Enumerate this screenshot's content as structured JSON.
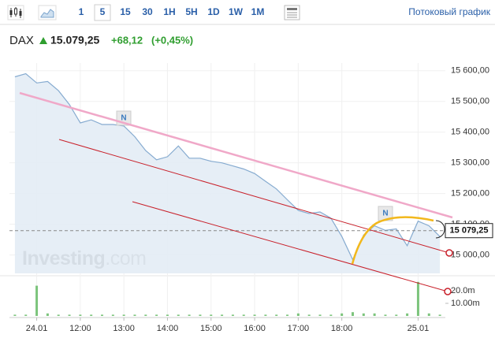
{
  "toolbar": {
    "intervals": [
      "1",
      "5",
      "15",
      "30",
      "1H",
      "5H",
      "1D",
      "1W",
      "1M"
    ],
    "streaming": "Потоковый график"
  },
  "quote": {
    "symbol": "DAX",
    "price": "15.079,25",
    "change": "+68,12",
    "change_pct": "(+0,45%)"
  },
  "chart_data": {
    "type": "area",
    "categories": [
      null,
      null,
      "24.01",
      null,
      null,
      null,
      "12:00",
      null,
      null,
      null,
      "13:00",
      null,
      null,
      null,
      "14:00",
      null,
      null,
      null,
      "15:00",
      null,
      null,
      null,
      "16:00",
      null,
      null,
      null,
      "17:00",
      null,
      null,
      null,
      "18:00",
      null,
      null,
      null,
      null,
      null,
      null,
      "25.01",
      null,
      null
    ],
    "series": [
      {
        "name": "DAX",
        "color": "#86abd0",
        "values": [
          15580,
          15590,
          15560,
          15565,
          15535,
          15490,
          15430,
          15440,
          15425,
          15425,
          15420,
          15385,
          15340,
          15310,
          15320,
          15355,
          15315,
          15315,
          15305,
          15300,
          15290,
          15280,
          15265,
          15240,
          15215,
          15180,
          15145,
          15135,
          15140,
          15120,
          15060,
          14985,
          15065,
          15095,
          15080,
          15085,
          15030,
          15110,
          15095,
          15060
        ]
      },
      {
        "name": "Volume",
        "color": "#7cc47c",
        "axis": "y2",
        "values": [
          1,
          1,
          24,
          2,
          1,
          1,
          1,
          1,
          1,
          1,
          1,
          1,
          1,
          1,
          1,
          1,
          1,
          1,
          1,
          1,
          1,
          1,
          1,
          1,
          1,
          1,
          2,
          1,
          1,
          1,
          2,
          3,
          2,
          2,
          1,
          1,
          2,
          27,
          2,
          1
        ]
      }
    ],
    "ylim": [
      14940,
      15625
    ],
    "yticks": [
      {
        "value": 15000,
        "label": "15 000,00"
      },
      {
        "value": 15100,
        "label": "15 100,00"
      },
      {
        "value": 15200,
        "label": "15 200,00"
      },
      {
        "value": 15300,
        "label": "15 300,00"
      },
      {
        "value": 15400,
        "label": "15 400,00"
      },
      {
        "value": 15500,
        "label": "15 500,00"
      },
      {
        "value": 15600,
        "label": "15 600,00"
      }
    ],
    "y2lim": [
      0,
      28.75
    ],
    "y2ticks": [
      {
        "value": 10,
        "label": "10.00m"
      },
      {
        "value": 20,
        "label": "20.0m"
      }
    ],
    "last_price": {
      "value": 15079.25,
      "label": "15 079,25"
    },
    "news_markers": [
      "N",
      "N"
    ],
    "watermark": [
      "Investing",
      ".com"
    ],
    "grid": true
  }
}
